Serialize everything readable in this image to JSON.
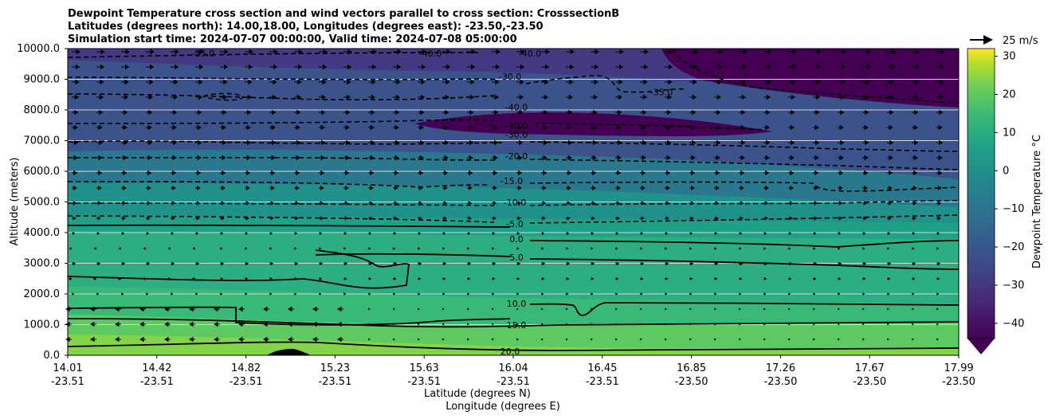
{
  "chart_data": {
    "type": "contour-cross-section",
    "title_lines": [
      "Dewpoint Temperature cross section and wind vectors parallel to cross section: CrosssectionB",
      "Latitudes (degrees north): 14.00,18.00, Longitudes (degrees east): -23.50,-23.50",
      "Simulation start time: 2024-07-07 00:00:00, Valid time: 2024-07-08 05:00:00"
    ],
    "ylabel": "Altitude (meters)",
    "xlabel_lat": "Latitude (degrees N)",
    "xlabel_lon": "Longitude (degrees E)",
    "ylim": [
      0,
      10000
    ],
    "yticks": [
      "0.0",
      "1000.0",
      "2000.0",
      "3000.0",
      "4000.0",
      "5000.0",
      "6000.0",
      "7000.0",
      "8000.0",
      "9000.0",
      "10000.0"
    ],
    "xticks": [
      {
        "lat": "14.01",
        "lon": "-23.51"
      },
      {
        "lat": "14.42",
        "lon": "-23.51"
      },
      {
        "lat": "14.82",
        "lon": "-23.51"
      },
      {
        "lat": "15.23",
        "lon": "-23.51"
      },
      {
        "lat": "15.63",
        "lon": "-23.51"
      },
      {
        "lat": "16.04",
        "lon": "-23.51"
      },
      {
        "lat": "16.45",
        "lon": "-23.51"
      },
      {
        "lat": "16.85",
        "lon": "-23.50"
      },
      {
        "lat": "17.26",
        "lon": "-23.50"
      },
      {
        "lat": "17.67",
        "lon": "-23.50"
      },
      {
        "lat": "17.99",
        "lon": "-23.50"
      }
    ],
    "colorbar": {
      "label": "Dewpoint Temperature °C",
      "range": [
        -44,
        32
      ],
      "ticks": [
        "−40",
        "−30",
        "−20",
        "−10",
        "0",
        "10",
        "20",
        "30"
      ],
      "extend": "min"
    },
    "contour_labels": [
      {
        "text": "20.0",
        "altitude": 130
      },
      {
        "text": "15.0",
        "altitude": 990
      },
      {
        "text": "10.0",
        "altitude": 1690
      },
      {
        "text": "5.0",
        "altitude": 3190
      },
      {
        "text": "0.0",
        "altitude": 3790
      },
      {
        "text": "-5.0",
        "altitude": 4290
      },
      {
        "text": "-10.0",
        "altitude": 4990
      },
      {
        "text": "-15.0",
        "altitude": 5690
      },
      {
        "text": "-20.0",
        "altitude": 6490
      },
      {
        "text": "-30.0",
        "altitude": 7190
      },
      {
        "text": "-40.0",
        "altitude": 7490
      },
      {
        "text": "-40.0",
        "altitude": 8090
      },
      {
        "text": "-30.0",
        "altitude": 9090
      },
      {
        "text": "-35.0",
        "altitude": 8590
      },
      {
        "text": "-40.0",
        "altitude": 9990
      },
      {
        "text": "-35.0",
        "altitude": 9990
      },
      {
        "text": "-40.0",
        "altitude": 9990
      }
    ],
    "quiver_key": {
      "label": "25 m/s",
      "speed": 25
    },
    "terrain_peak_altitude": 220
  }
}
